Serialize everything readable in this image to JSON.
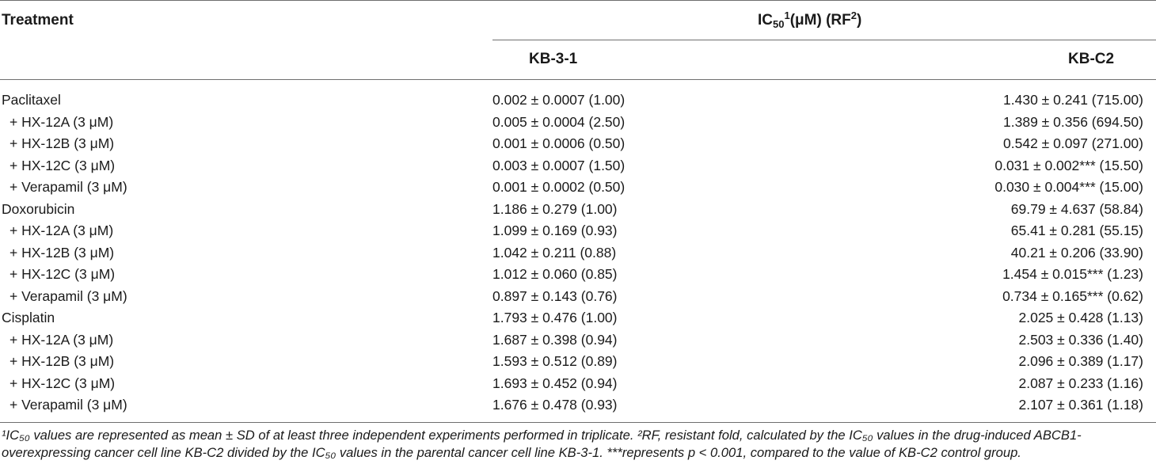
{
  "header": {
    "treatment": "Treatment",
    "ic50_label": "IC",
    "ic50_sub": "50",
    "ic50_sup": "1",
    "ic50_mid": "(μM) (RF",
    "ic50_sup2": "2",
    "ic50_end": ")",
    "col_kb31": "KB-3-1",
    "col_kbc2": "KB-C2"
  },
  "rows": [
    {
      "treatment": "Paclitaxel",
      "kb31": "0.002 ± 0.0007 (1.00)",
      "kbc2": "1.430 ± 0.241 (715.00)"
    },
    {
      "treatment": "+ HX-12A (3 μM)",
      "kb31": "0.005 ± 0.0004 (2.50)",
      "kbc2": "1.389 ± 0.356 (694.50)"
    },
    {
      "treatment": "+ HX-12B (3 μM)",
      "kb31": "0.001 ± 0.0006 (0.50)",
      "kbc2": "0.542 ± 0.097 (271.00)"
    },
    {
      "treatment": "+ HX-12C (3 μM)",
      "kb31": "0.003 ± 0.0007 (1.50)",
      "kbc2": "0.031 ± 0.002*** (15.50)"
    },
    {
      "treatment": "+ Verapamil (3 μM)",
      "kb31": "0.001 ± 0.0002 (0.50)",
      "kbc2": "0.030 ± 0.004*** (15.00)"
    },
    {
      "treatment": "Doxorubicin",
      "kb31": "1.186 ± 0.279 (1.00)",
      "kbc2": "69.79 ± 4.637 (58.84)"
    },
    {
      "treatment": "+ HX-12A (3 μM)",
      "kb31": "1.099 ± 0.169 (0.93)",
      "kbc2": "65.41 ± 0.281 (55.15)"
    },
    {
      "treatment": "+ HX-12B (3 μM)",
      "kb31": "1.042 ± 0.211 (0.88)",
      "kbc2": "40.21 ± 0.206 (33.90)"
    },
    {
      "treatment": "+ HX-12C (3 μM)",
      "kb31": "1.012 ± 0.060 (0.85)",
      "kbc2": "1.454 ± 0.015*** (1.23)"
    },
    {
      "treatment": "+ Verapamil (3 μM)",
      "kb31": "0.897 ± 0.143 (0.76)",
      "kbc2": "0.734 ± 0.165*** (0.62)"
    },
    {
      "treatment": "Cisplatin",
      "kb31": "1.793 ± 0.476 (1.00)",
      "kbc2": "2.025 ± 0.428 (1.13)"
    },
    {
      "treatment": "+ HX-12A (3 μM)",
      "kb31": "1.687 ± 0.398 (0.94)",
      "kbc2": "2.503 ± 0.336 (1.40)"
    },
    {
      "treatment": "+ HX-12B (3 μM)",
      "kb31": "1.593 ± 0.512 (0.89)",
      "kbc2": "2.096 ± 0.389 (1.17)"
    },
    {
      "treatment": "+ HX-12C (3 μM)",
      "kb31": "1.693 ± 0.452 (0.94)",
      "kbc2": "2.087 ± 0.233 (1.16)"
    },
    {
      "treatment": "+ Verapamil (3 μM)",
      "kb31": "1.676 ± 0.478 (0.93)",
      "kbc2": "2.107 ± 0.361 (1.18)"
    }
  ],
  "footnote": {
    "line1": "¹IC₅₀ values are represented as mean ± SD of at least three independent experiments performed in triplicate. ²RF, resistant fold, calculated by the IC₅₀ values in the drug-induced ABCB1-",
    "line2": "overexpressing cancer cell line KB-C2 divided by the IC₅₀ values in the parental cancer cell line KB-3-1. ***represents p < 0.001, compared to the value of KB-C2 control group."
  }
}
